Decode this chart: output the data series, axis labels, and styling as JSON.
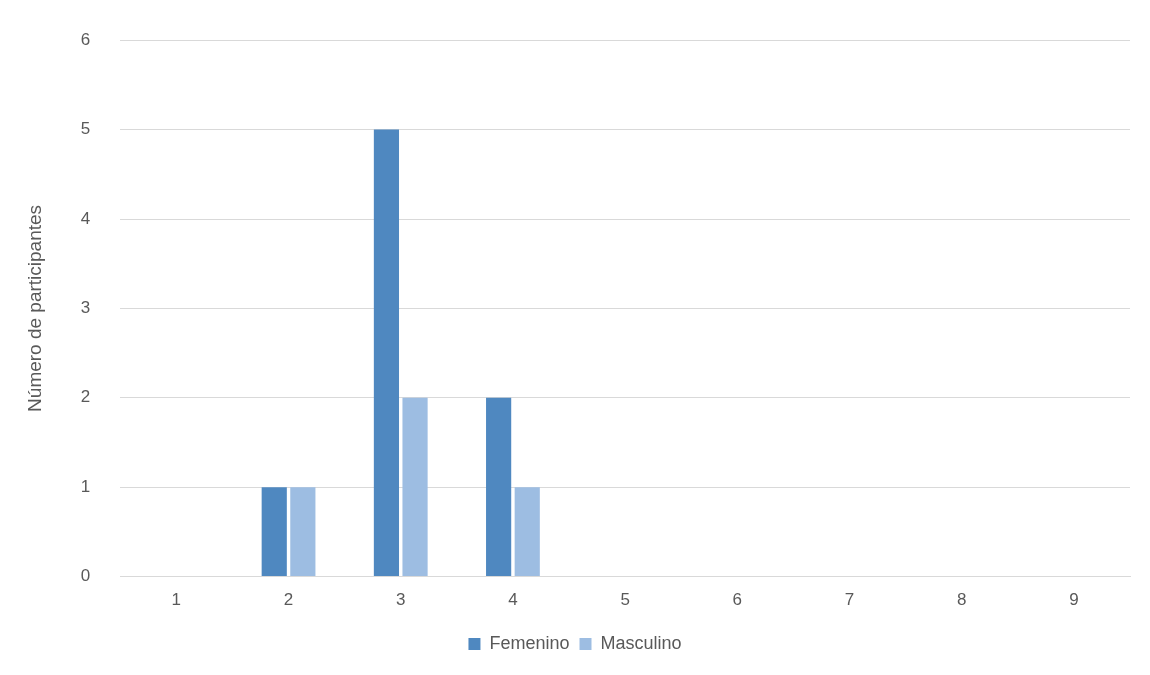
{
  "chart_data": {
    "type": "bar",
    "ylabel": "Número de participantes",
    "categories": [
      "1",
      "2",
      "3",
      "4",
      "5",
      "6",
      "7",
      "8",
      "9"
    ],
    "series": [
      {
        "name": "Femenino",
        "color": "#4f88c0",
        "values": [
          0,
          1,
          5,
          2,
          0,
          0,
          0,
          0,
          0
        ]
      },
      {
        "name": "Masculino",
        "color": "#9dbde2",
        "values": [
          0,
          1,
          2,
          1,
          0,
          0,
          0,
          0,
          0
        ]
      }
    ],
    "ylim": [
      0,
      6
    ],
    "yticks": [
      0,
      1,
      2,
      3,
      4,
      5,
      6
    ],
    "grid": "y",
    "legend": "bottom"
  }
}
